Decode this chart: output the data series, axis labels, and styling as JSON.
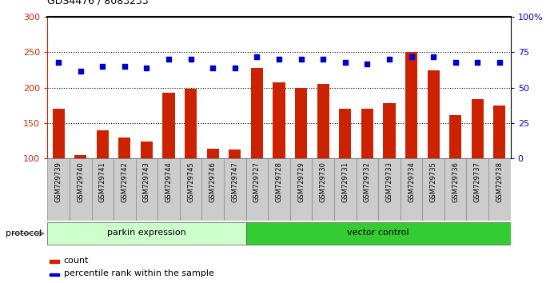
{
  "title": "GDS4476 / 8083233",
  "samples": [
    "GSM729739",
    "GSM729740",
    "GSM729741",
    "GSM729742",
    "GSM729743",
    "GSM729744",
    "GSM729745",
    "GSM729746",
    "GSM729747",
    "GSM729727",
    "GSM729728",
    "GSM729729",
    "GSM729730",
    "GSM729731",
    "GSM729732",
    "GSM729733",
    "GSM729734",
    "GSM729735",
    "GSM729736",
    "GSM729737",
    "GSM729738"
  ],
  "counts": [
    170,
    105,
    140,
    130,
    124,
    193,
    199,
    114,
    113,
    228,
    208,
    200,
    205,
    170,
    170,
    178,
    251,
    225,
    161,
    184,
    175
  ],
  "percentiles": [
    68,
    62,
    65,
    65,
    64,
    70,
    70,
    64,
    64,
    72,
    70,
    70,
    70,
    68,
    67,
    70,
    72,
    72,
    68,
    68,
    68
  ],
  "groups": [
    {
      "label": "parkin expression",
      "start": 0,
      "end": 9,
      "color": "#CCFFCC"
    },
    {
      "label": "vector control",
      "start": 9,
      "end": 21,
      "color": "#33CC33"
    }
  ],
  "bar_color": "#CC2200",
  "dot_color": "#0000CC",
  "ylim_left": [
    100,
    300
  ],
  "ylim_right": [
    0,
    100
  ],
  "yticks_left": [
    100,
    150,
    200,
    250,
    300
  ],
  "yticks_right": [
    0,
    25,
    50,
    75,
    100
  ],
  "ytick_labels_right": [
    "0",
    "25",
    "50",
    "75",
    "100%"
  ],
  "hlines": [
    150,
    200,
    250
  ],
  "protocol_label": "protocol",
  "legend_count_label": "count",
  "legend_pct_label": "percentile rank within the sample",
  "sample_box_color": "#CCCCCC",
  "plot_bg_color": "#FFFFFF"
}
